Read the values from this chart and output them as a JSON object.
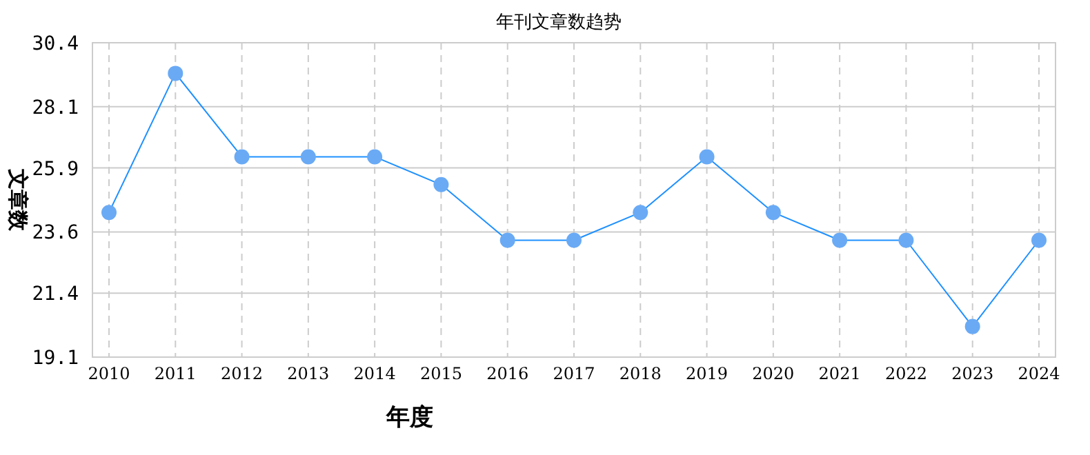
{
  "chart_data": {
    "type": "line",
    "title": "年刊文章数趋势",
    "xlabel": "年度",
    "ylabel": "文章数",
    "categories": [
      "2010",
      "2011",
      "2012",
      "2013",
      "2014",
      "2015",
      "2016",
      "2017",
      "2018",
      "2019",
      "2020",
      "2021",
      "2022",
      "2023",
      "2024"
    ],
    "series": [
      {
        "color": "#1e90ff",
        "values": [
          24.3,
          29.3,
          26.3,
          26.3,
          26.3,
          25.3,
          23.3,
          23.3,
          24.3,
          26.3,
          24.3,
          23.3,
          23.3,
          20.2,
          23.3
        ]
      }
    ],
    "ylim": [
      19.1,
      30.4
    ],
    "yticks": [
      19.1,
      21.4,
      23.6,
      25.9,
      28.1,
      30.4
    ],
    "grid": true,
    "marker": "circle",
    "line_style": "solid"
  }
}
